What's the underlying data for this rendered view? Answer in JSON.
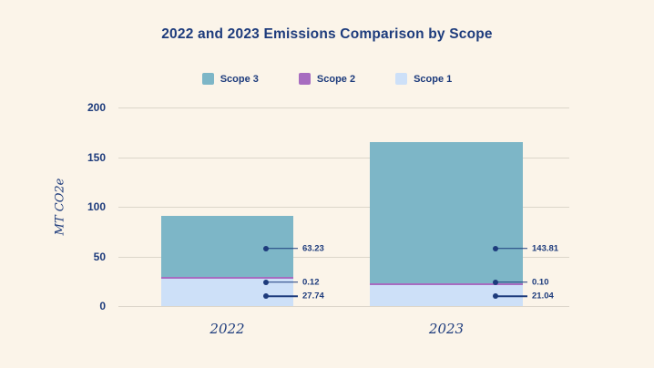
{
  "title": "2022 and 2023 Emissions Comparison by Scope",
  "colors": {
    "background": "#FBF4E9",
    "text": "#1D3B7C",
    "gridline": "#DCD6CA",
    "scope3": "#7DB6C7",
    "scope2": "#A76CC0",
    "scope1": "#CDE0F8"
  },
  "legend": {
    "items": [
      {
        "label": "Scope 3",
        "color_key": "scope3"
      },
      {
        "label": "Scope 2",
        "color_key": "scope2"
      },
      {
        "label": "Scope 1",
        "color_key": "scope1"
      }
    ]
  },
  "chart_data": {
    "type": "bar",
    "stacked": true,
    "title": "2022 and 2023 Emissions Comparison by Scope",
    "ylabel": "MT CO2e",
    "xlabel": "",
    "ylim": [
      0,
      200
    ],
    "yticks": [
      0,
      50,
      100,
      150,
      200
    ],
    "grid": true,
    "legend_position": "top",
    "categories": [
      "2022",
      "2023"
    ],
    "series": [
      {
        "name": "Scope 1",
        "color_key": "scope1",
        "values": [
          27.74,
          21.04
        ],
        "value_labels": [
          "27.74",
          "21.04"
        ]
      },
      {
        "name": "Scope 2",
        "color_key": "scope2",
        "values": [
          0.12,
          0.1
        ],
        "value_labels": [
          "0.12",
          "0.10"
        ]
      },
      {
        "name": "Scope 3",
        "color_key": "scope3",
        "values": [
          63.23,
          143.81
        ],
        "value_labels": [
          "63.23",
          "143.81"
        ]
      }
    ]
  }
}
